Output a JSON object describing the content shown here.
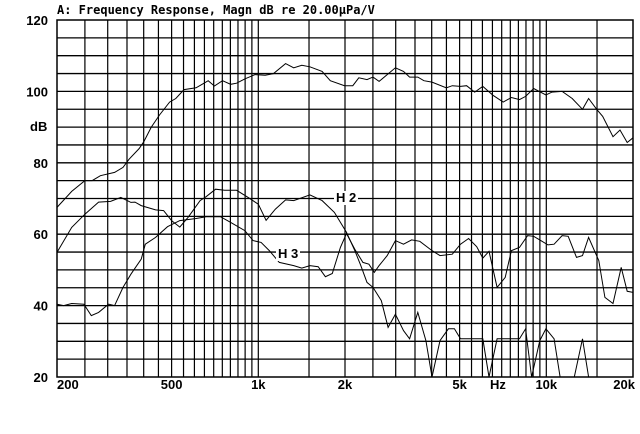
{
  "chart_data": {
    "type": "line",
    "title": "A: Frequency Response, Magn dB re 20.00µPa/V",
    "xlabel": "Hz",
    "ylabel": "dB",
    "x_scale": "log",
    "xlim": [
      200,
      20000
    ],
    "ylim": [
      20,
      120
    ],
    "grid": true,
    "x_tick_labels": [
      {
        "value": 200,
        "label": "200"
      },
      {
        "value": 500,
        "label": "500"
      },
      {
        "value": 1000,
        "label": "1k"
      },
      {
        "value": 2000,
        "label": "2k"
      },
      {
        "value": 5000,
        "label": "5k"
      },
      {
        "value": 10000,
        "label": "10k"
      },
      {
        "value": 20000,
        "label": "20k"
      }
    ],
    "y_tick_labels": [
      {
        "value": 120,
        "label": "120"
      },
      {
        "value": 100,
        "label": "100"
      },
      {
        "value": 80,
        "label": "80"
      },
      {
        "value": 60,
        "label": "60"
      },
      {
        "value": 40,
        "label": "40"
      },
      {
        "value": 20,
        "label": "20"
      }
    ],
    "line_color": "#000000",
    "series": [
      {
        "x": [
          200,
          225,
          250,
          265,
          283,
          317,
          339,
          356,
          386,
          401,
          425,
          454,
          492,
          517,
          552,
          608,
          638,
          670,
          704,
          751,
          802,
          841,
          898,
          975,
          1057,
          1128,
          1244,
          1327,
          1416,
          1511,
          1666,
          1778,
          1992,
          2128,
          2233,
          2384,
          2502,
          2627,
          2803,
          2992,
          3193,
          3352,
          3578,
          3757,
          4010,
          4495,
          4718,
          5035,
          5286,
          5642,
          6020,
          6530,
          7085,
          7564,
          8073,
          8473,
          9040,
          9970,
          10470,
          11350,
          12300,
          13360,
          14020,
          14960,
          15700,
          17050,
          18030,
          19100,
          20000
        ],
        "y": [
          67.5,
          72,
          75,
          75,
          76.4,
          77.3,
          78.7,
          81,
          84,
          86,
          90,
          93.4,
          97,
          98,
          100.5,
          101,
          102,
          103,
          101.5,
          103,
          102,
          102.3,
          103.5,
          104.7,
          104.5,
          105,
          107.8,
          106.6,
          107.3,
          106.9,
          105.6,
          103,
          101.6,
          101.6,
          103.8,
          103.3,
          104,
          102.8,
          104.7,
          106.6,
          105.6,
          104,
          104,
          103,
          102.6,
          101,
          101.6,
          101.4,
          101.6,
          99.8,
          101.4,
          98.9,
          97,
          98.3,
          97.7,
          98.6,
          100.8,
          99,
          99.8,
          100,
          98,
          95,
          98,
          95,
          93,
          87.3,
          89.2,
          85.7,
          87
        ]
      },
      {
        "name": "H 2",
        "x": [
          200,
          225,
          250,
          279,
          307,
          333,
          361,
          373,
          392,
          440,
          469,
          500,
          534,
          570,
          628,
          659,
          711,
          764,
          841,
          929,
          1000,
          1064,
          1146,
          1244,
          1327,
          1511,
          1666,
          1837,
          2024,
          2163,
          2270,
          2384,
          2502,
          2673,
          2823,
          2992,
          3193,
          3352,
          3578,
          3819,
          4010,
          4276,
          4571,
          4797,
          5035,
          5373,
          6020,
          6324,
          6745,
          7197,
          7564,
          8073,
          8473,
          8892,
          9490,
          9970,
          10640,
          11170,
          12510,
          13360,
          14020,
          15210,
          15970,
          17050,
          18200,
          19100,
          20000
        ],
        "y": [
          54.9,
          61.9,
          65.6,
          69,
          69.2,
          70.3,
          68.9,
          69,
          68,
          66.8,
          66.6,
          63.8,
          62,
          64.7,
          69.4,
          70.5,
          72.6,
          72.3,
          72.3,
          70.1,
          68.4,
          63.9,
          67,
          69.6,
          69.4,
          71,
          69.4,
          66.1,
          60.5,
          55.4,
          51.2,
          46.5,
          45.1,
          41.4,
          33.9,
          37.6,
          33,
          30.7,
          38.1,
          30.2,
          20,
          30.2,
          33.5,
          33.5,
          30.7,
          30.7,
          30.7,
          20,
          30.7,
          30.7,
          30.7,
          30.7,
          33.5,
          20,
          30.2,
          33.5,
          30.7,
          20,
          20,
          30.7,
          20,
          20,
          20,
          20,
          20,
          20,
          20
        ]
      },
      {
        "name": "H 3",
        "x": [
          200,
          211,
          225,
          248,
          263,
          279,
          302,
          317,
          339,
          361,
          392,
          405,
          440,
          484,
          534,
          608,
          659,
          739,
          802,
          898,
          959,
          1023,
          1092,
          1183,
          1327,
          1416,
          1511,
          1614,
          1710,
          1807,
          1928,
          2024,
          2163,
          2307,
          2422,
          2527,
          2627,
          2803,
          2992,
          3193,
          3407,
          3638,
          4010,
          4276,
          4718,
          5035,
          5373,
          5732,
          6020,
          6324,
          6745,
          7197,
          7564,
          8073,
          8610,
          9040,
          9490,
          10130,
          10640,
          11350,
          11910,
          12730,
          13360,
          14020,
          15210,
          15970,
          17050,
          18200,
          19100,
          20000
        ],
        "y": [
          40.4,
          40,
          40.6,
          40.4,
          37.2,
          38.1,
          40.4,
          40,
          45.1,
          48.8,
          53,
          57.2,
          59.1,
          62.1,
          63.8,
          64.4,
          64.9,
          64.9,
          63.3,
          61,
          58.2,
          57.7,
          55.4,
          52.1,
          51.2,
          50.5,
          51.2,
          50.9,
          48.1,
          49,
          56.3,
          60.2,
          55.8,
          52.1,
          51.6,
          49.3,
          51.2,
          54,
          58.2,
          57.2,
          58.4,
          58,
          55.4,
          54,
          54.4,
          57.2,
          58.8,
          56.5,
          53.3,
          55.2,
          45.1,
          47.9,
          55.4,
          56.3,
          59.6,
          59.4,
          58.4,
          57,
          57.2,
          59.6,
          59.4,
          53.5,
          54,
          59.1,
          52.6,
          42.3,
          40.6,
          50.7,
          44,
          43.7
        ]
      }
    ]
  }
}
